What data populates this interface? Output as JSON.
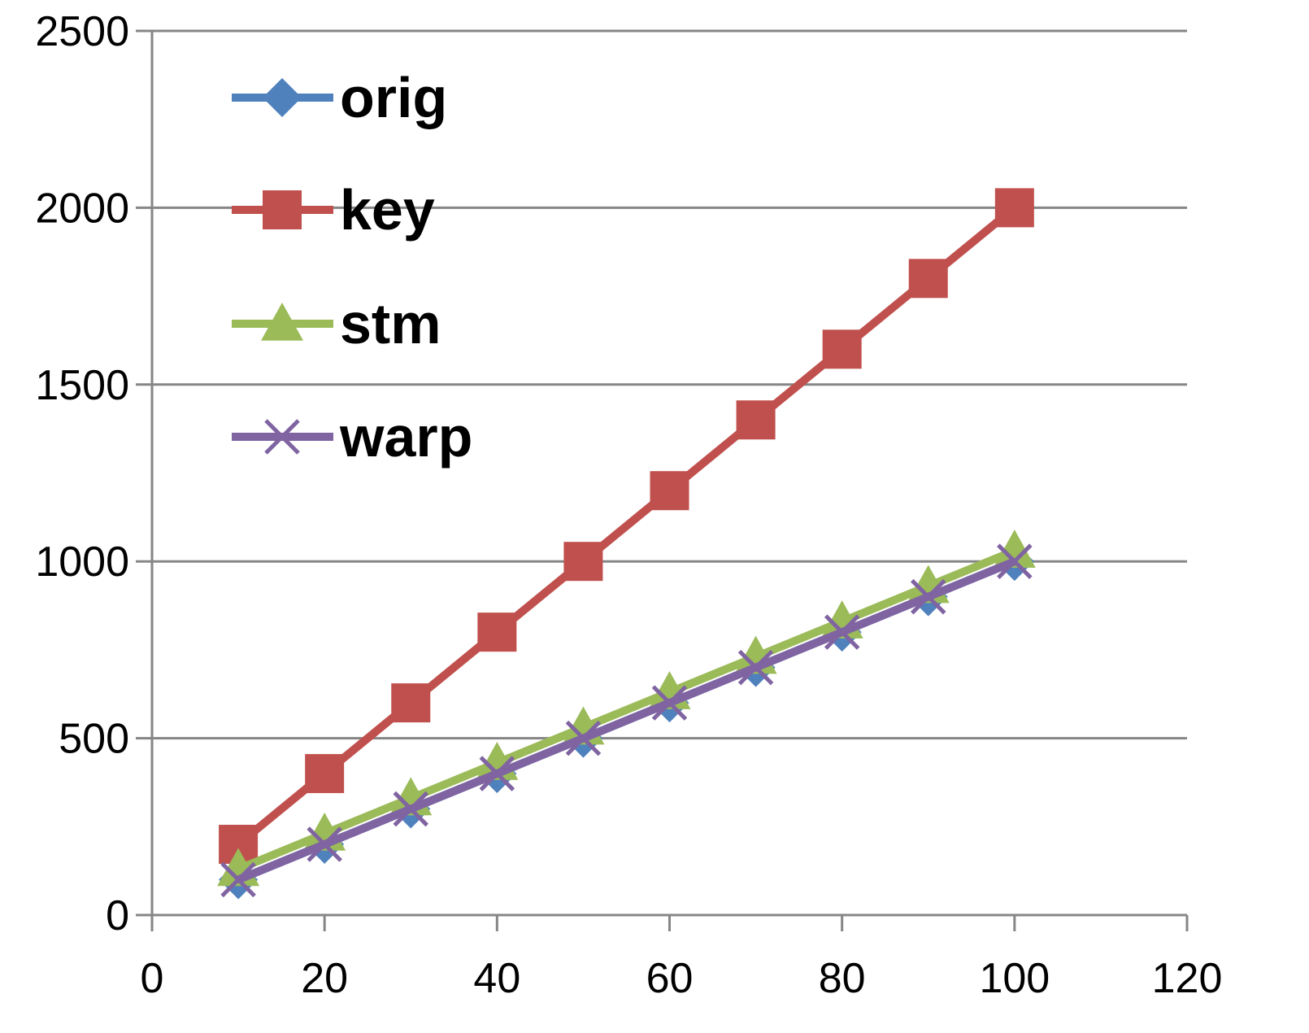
{
  "chart_data": {
    "type": "line",
    "title": "",
    "xlabel": "",
    "ylabel": "",
    "xlim": [
      0,
      120
    ],
    "ylim": [
      0,
      2500
    ],
    "x_ticks": [
      0,
      20,
      40,
      60,
      80,
      100,
      120
    ],
    "y_ticks": [
      0,
      500,
      1000,
      1500,
      2000,
      2500
    ],
    "x_tick_labels": [
      "0",
      "20",
      "40",
      "60",
      "80",
      "100",
      "120"
    ],
    "y_tick_labels": [
      "0",
      "500",
      "1000",
      "1500",
      "2000",
      "2500"
    ],
    "grid": "horizontal",
    "legend_position": "top-left",
    "x": [
      10,
      20,
      30,
      40,
      50,
      60,
      70,
      80,
      90,
      100
    ],
    "series": [
      {
        "name": "orig",
        "color": "#4F81BD",
        "marker": "diamond",
        "values": [
          100,
          200,
          300,
          400,
          500,
          600,
          700,
          800,
          900,
          1000
        ]
      },
      {
        "name": "key",
        "color": "#C0504D",
        "marker": "square",
        "values": [
          200,
          400,
          600,
          800,
          1000,
          1200,
          1400,
          1600,
          1800,
          2000
        ]
      },
      {
        "name": "stm",
        "color": "#9BBB59",
        "marker": "triangle",
        "values": [
          130,
          230,
          330,
          430,
          530,
          630,
          730,
          830,
          930,
          1030
        ]
      },
      {
        "name": "warp",
        "color": "#8064A2",
        "marker": "x",
        "values": [
          100,
          200,
          300,
          400,
          500,
          600,
          700,
          800,
          900,
          1000
        ]
      }
    ]
  }
}
